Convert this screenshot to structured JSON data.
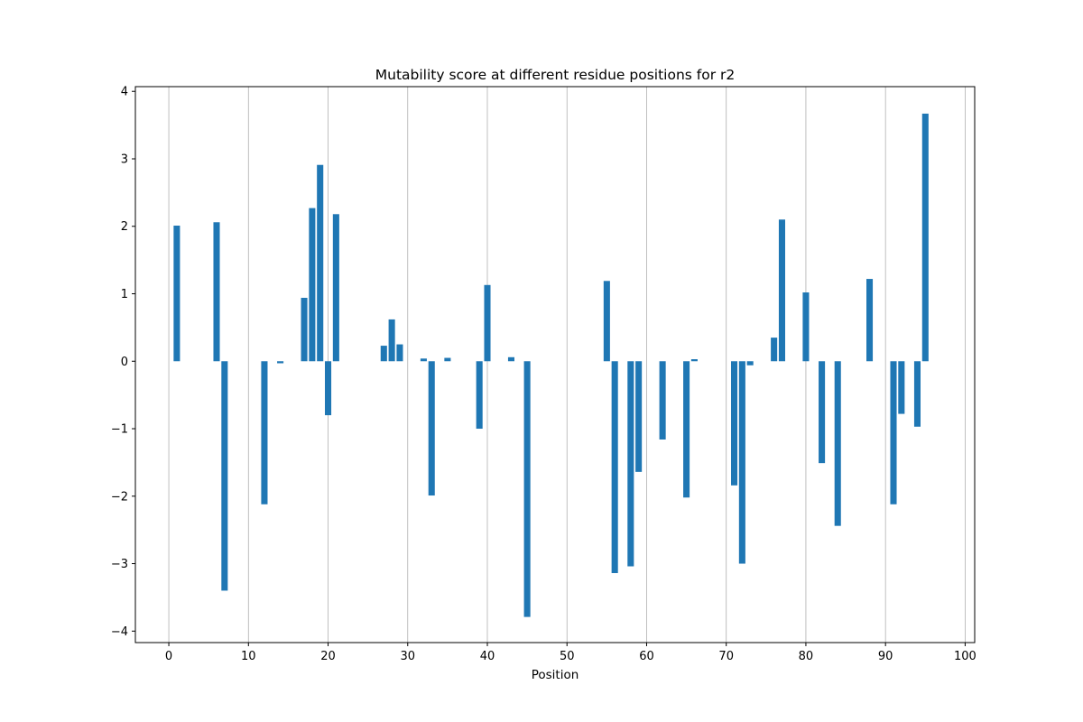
{
  "chart_data": {
    "type": "bar",
    "title": "Mutability score at different residue positions for r2",
    "xlabel": "Position",
    "ylabel": "",
    "xlim": [
      -4.2,
      101.2
    ],
    "ylim": [
      -4.17,
      4.07
    ],
    "x_ticks": [
      0,
      10,
      20,
      30,
      40,
      50,
      60,
      70,
      80,
      90,
      100
    ],
    "y_ticks": [
      -4,
      -3,
      -2,
      -1,
      0,
      1,
      2,
      3,
      4
    ],
    "grid": "x-axis only (vertical lines)",
    "bar_color": "#1f77b4",
    "series": [
      {
        "x": [
          1,
          6,
          7,
          12,
          14,
          17,
          18,
          19,
          20,
          21,
          27,
          28,
          29,
          32,
          33,
          35,
          39,
          40,
          43,
          45,
          55,
          56,
          58,
          59,
          62,
          65,
          66,
          71,
          72,
          73,
          76,
          77,
          80,
          82,
          84,
          88,
          91,
          92,
          94,
          95
        ],
        "values": [
          2.01,
          2.06,
          -3.4,
          -2.12,
          -0.03,
          0.94,
          2.27,
          2.91,
          -0.8,
          2.18,
          0.23,
          0.62,
          0.25,
          0.04,
          -1.99,
          0.05,
          -1.0,
          1.13,
          0.06,
          -3.79,
          1.19,
          -3.14,
          -3.04,
          -1.64,
          -1.16,
          -2.02,
          0.03,
          -1.84,
          -3.0,
          -0.06,
          0.35,
          2.1,
          1.02,
          -1.51,
          -2.44,
          1.22,
          -2.12,
          -0.78,
          -0.97,
          3.67
        ]
      }
    ]
  }
}
